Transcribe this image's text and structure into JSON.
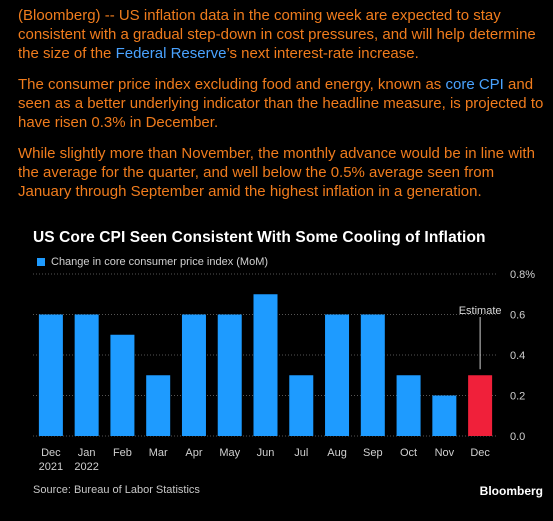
{
  "article": {
    "p1_a": "(Bloomberg) -- US inflation data in the coming week are expected to stay consistent with a gradual step-down in cost pressures, and will help determine the size of the ",
    "p1_link": "Federal Reserve",
    "p1_b": "’s next interest-rate increase.",
    "p2_a": "The consumer price index excluding food and energy, known as ",
    "p2_link": "core CPI",
    "p2_b": " and seen as a better underlying indicator than the headline measure, is projected to have risen 0.3% in December.",
    "p3": "While slightly more than November, the monthly advance would be in line with the average for the quarter, and well below the 0.5% average seen from January through September amid the highest inflation in a generation."
  },
  "colors": {
    "text_orange": "#f07c1d",
    "link_blue": "#4aa3ff",
    "bar_blue": "#1e9bff",
    "estimate_red": "#f0203a",
    "grid": "#555555"
  },
  "chart_data": {
    "type": "bar",
    "title": "US Core CPI Seen Consistent With Some Cooling of Inflation",
    "legend": "Change in core consumer price index (MoM)",
    "categories": [
      "Dec",
      "Jan",
      "Feb",
      "Mar",
      "Apr",
      "May",
      "Jun",
      "Jul",
      "Aug",
      "Sep",
      "Oct",
      "Nov",
      "Dec"
    ],
    "category_sublabels": [
      "2021",
      "2022",
      "",
      "",
      "",
      "",
      "",
      "",
      "",
      "",
      "",
      "",
      ""
    ],
    "values": [
      0.6,
      0.6,
      0.5,
      0.3,
      0.6,
      0.6,
      0.7,
      0.3,
      0.6,
      0.6,
      0.3,
      0.2,
      0.3
    ],
    "estimate_index": 12,
    "annotation": "Estimate",
    "yticks": [
      "0.0",
      "0.2",
      "0.4",
      "0.6",
      "0.8%"
    ],
    "ylim": [
      0,
      0.8
    ],
    "y_axis_side": "right",
    "grid": true,
    "source": "Source: Bureau of Labor Statistics",
    "brand": "Bloomberg"
  }
}
